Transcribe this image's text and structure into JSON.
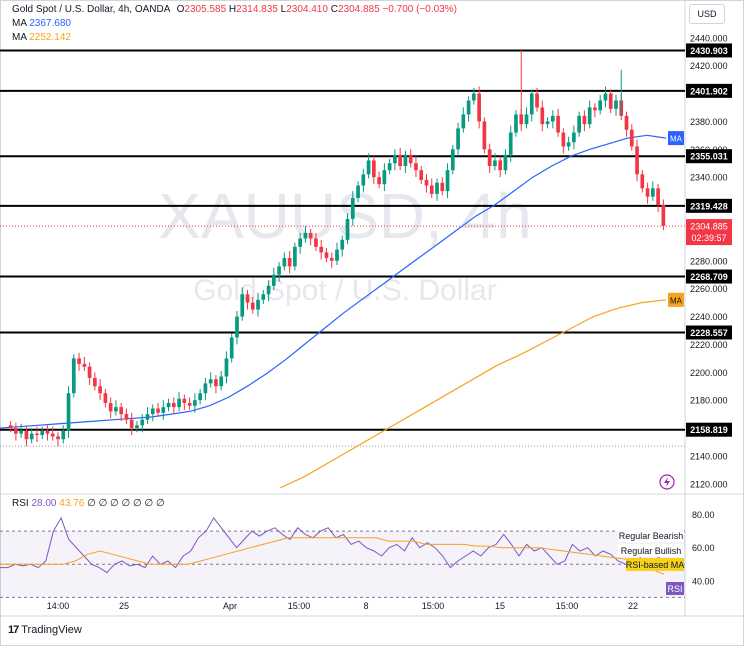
{
  "legend": {
    "symbol": "Gold Spot / U.S. Dollar, 4h, OANDA",
    "o_label": "O",
    "o_value": "2305.585",
    "h_label": "H",
    "h_value": "2314.835",
    "l_label": "L",
    "l_value": "2304.410",
    "c_label": "C",
    "c_value": "2304.885",
    "change": "−0.700 (−0.03%)",
    "ma1_label": "MA",
    "ma1_value": "2367.680",
    "ma2_label": "MA",
    "ma2_value": "2252.142"
  },
  "currency": "USD",
  "watermark": {
    "ticker": "XAUUSD, 4h",
    "name": "Gold Spot / U.S. Dollar"
  },
  "rsi_legend": {
    "label": "RSI",
    "rsi_value": "28.00",
    "ma_value": "43.76",
    "extras": "∅ ∅ ∅ ∅ ∅ ∅ ∅"
  },
  "rsi_tags": {
    "bearish": "Regular Bearish",
    "bullish": "Regular Bullish",
    "rsi_ma": "RSI-based MA",
    "rsi": "RSI"
  },
  "brand": {
    "logo": "tradingview-logo-icon",
    "name": "TradingView"
  },
  "colors": {
    "up": "#089981",
    "down": "#f23645",
    "ma_fast": "#2962ff",
    "ma_slow": "#f7a21b",
    "rsi": "#7e57c2"
  },
  "chart_data": [
    {
      "type": "candlestick",
      "title": "Gold Spot / U.S. Dollar, 4h, OANDA",
      "y_axis_ticks": [
        2120,
        2140,
        2160,
        2180,
        2200,
        2220,
        2240,
        2260,
        2280,
        2300,
        2320,
        2340,
        2360,
        2380,
        2400,
        2420,
        2440
      ],
      "ylim": [
        2117,
        2447
      ],
      "x_axis_ticks": [
        "14:00",
        "25",
        "Apr",
        "15:00",
        "8",
        "15:00",
        "15",
        "15:00",
        "22"
      ],
      "horizontal_levels": [
        {
          "value": 2430.903,
          "label": "2430.903"
        },
        {
          "value": 2401.902,
          "label": "2401.902"
        },
        {
          "value": 2355.031,
          "label": "2355.031"
        },
        {
          "value": 2319.428,
          "label": "2319.428"
        },
        {
          "value": 2268.709,
          "label": "2268.709"
        },
        {
          "value": 2228.557,
          "label": "2228.557"
        },
        {
          "value": 2158.819,
          "label": "2158.819"
        }
      ],
      "last_price": {
        "value": 2304.885,
        "label": "2304.885",
        "countdown": "02:39:57"
      },
      "ma_fast_tag": "MA",
      "ma_slow_tag": "MA",
      "grid": false,
      "candles_close": [
        2160,
        2156,
        2158,
        2152,
        2156,
        2155,
        2158,
        2156,
        2154,
        2152,
        2158,
        2185,
        2210,
        2206,
        2204,
        2196,
        2190,
        2185,
        2178,
        2172,
        2175,
        2170,
        2166,
        2160,
        2162,
        2166,
        2170,
        2174,
        2171,
        2175,
        2178,
        2175,
        2181,
        2178,
        2176,
        2180,
        2185,
        2192,
        2195,
        2190,
        2197,
        2210,
        2225,
        2240,
        2256,
        2250,
        2245,
        2252,
        2256,
        2262,
        2270,
        2276,
        2282,
        2276,
        2290,
        2296,
        2300,
        2296,
        2290,
        2286,
        2282,
        2280,
        2288,
        2295,
        2310,
        2325,
        2334,
        2342,
        2352,
        2340,
        2335,
        2345,
        2350,
        2356,
        2348,
        2356,
        2350,
        2345,
        2338,
        2334,
        2328,
        2336,
        2330,
        2345,
        2360,
        2375,
        2385,
        2395,
        2400,
        2380,
        2360,
        2348,
        2352,
        2345,
        2356,
        2372,
        2385,
        2378,
        2385,
        2400,
        2390,
        2378,
        2380,
        2384,
        2372,
        2362,
        2365,
        2372,
        2384,
        2378,
        2390,
        2388,
        2395,
        2400,
        2389,
        2395,
        2384,
        2374,
        2362,
        2342,
        2332,
        2326,
        2332,
        2320,
        2305
      ],
      "ma_fast_values": [
        2160,
        2161,
        2162,
        2163,
        2164,
        2165,
        2166,
        2167,
        2168,
        2170,
        2172,
        2176,
        2182,
        2190,
        2199,
        2209,
        2220,
        2231,
        2242,
        2252,
        2262,
        2272,
        2282,
        2292,
        2302,
        2312,
        2320,
        2330,
        2340,
        2348,
        2355,
        2360,
        2364,
        2368,
        2370,
        2368
      ],
      "ma_slow_values": [
        2117,
        2125,
        2135,
        2145,
        2155,
        2165,
        2175,
        2185,
        2195,
        2205,
        2213,
        2222,
        2231,
        2240,
        2246,
        2250,
        2252
      ],
      "series": [
        {
          "name": "RSI",
          "ylim": [
            20,
            90
          ],
          "y_axis_ticks": [
            40,
            60,
            80
          ],
          "band": [
            30,
            70
          ],
          "values": [
            48,
            48,
            50,
            49,
            50,
            48,
            52,
            70,
            78,
            65,
            60,
            55,
            50,
            48,
            45,
            50,
            52,
            49,
            50,
            48,
            55,
            50,
            52,
            48,
            55,
            58,
            66,
            70,
            78,
            72,
            66,
            60,
            65,
            70,
            67,
            70,
            72,
            68,
            65,
            72,
            68,
            66,
            70,
            72,
            66,
            68,
            62,
            64,
            60,
            58,
            55,
            60,
            62,
            58,
            66,
            60,
            63,
            60,
            55,
            48,
            52,
            55,
            58,
            55,
            60,
            62,
            68,
            62,
            55,
            62,
            58,
            60,
            55,
            50,
            52,
            62,
            58,
            60,
            55,
            58,
            56,
            52,
            50,
            48,
            55,
            58,
            55,
            52
          ],
          "color": "#7e57c2"
        },
        {
          "name": "RSI-based MA",
          "values": [
            50,
            50,
            50,
            50,
            50,
            50,
            52,
            56,
            58,
            56,
            54,
            52,
            50,
            50,
            50,
            50,
            52,
            54,
            56,
            58,
            60,
            62,
            64,
            66,
            66,
            66,
            66,
            66,
            66,
            66,
            66,
            64,
            64,
            64,
            62,
            62,
            62,
            62,
            61,
            61,
            60,
            60,
            60,
            60,
            59,
            58,
            57,
            56,
            55,
            54,
            53,
            50,
            47,
            44
          ],
          "color": "#f7a21b"
        }
      ]
    }
  ]
}
